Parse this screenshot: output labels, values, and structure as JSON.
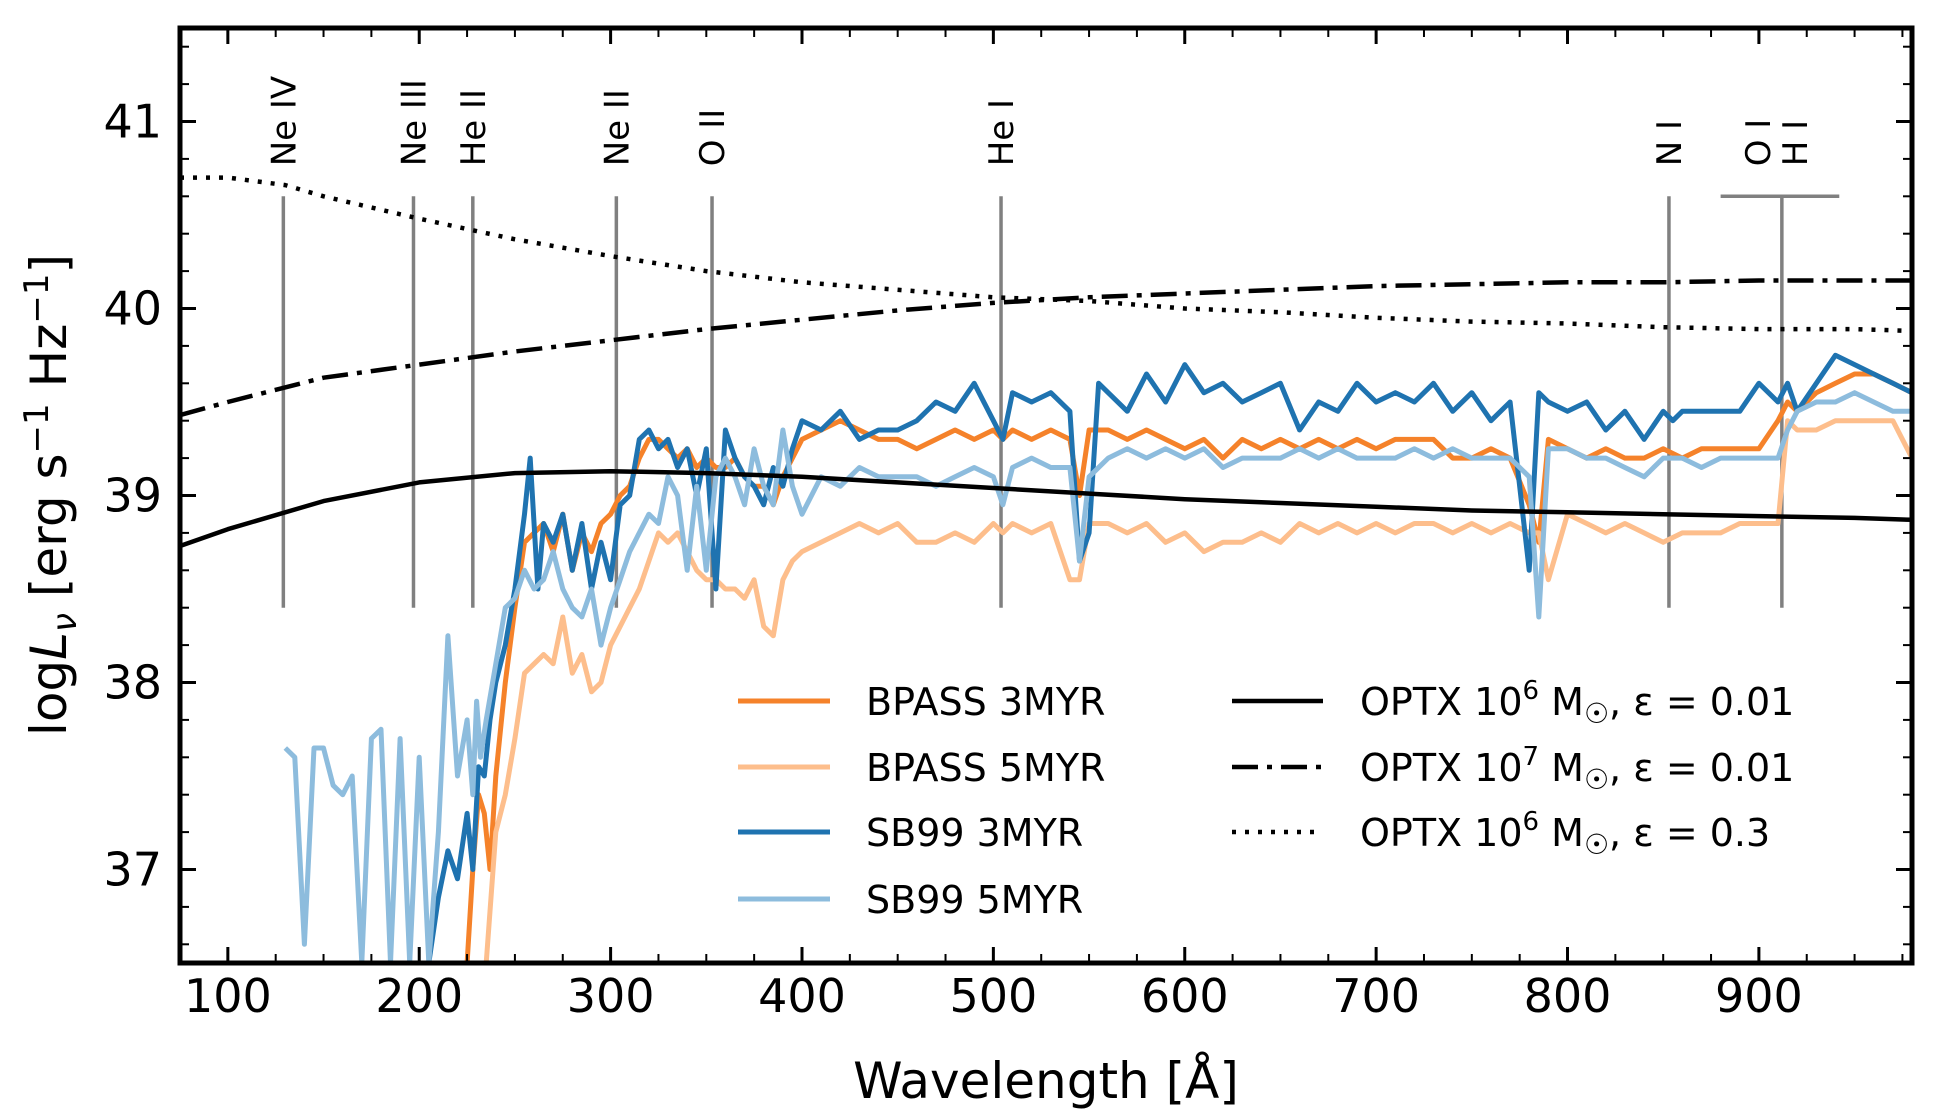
{
  "chart_data": {
    "type": "line",
    "xlabel": "Wavelength [Å]",
    "ylabel_parts": {
      "pre": "log",
      "L": "L",
      "nu": "ν",
      "post": " [erg s",
      "exp1": "−1",
      "mid": " Hz",
      "exp2": "−1",
      "end": "]"
    },
    "xlim": [
      75,
      980
    ],
    "ylim": [
      36.5,
      41.5
    ],
    "xticks": [
      100,
      200,
      300,
      400,
      500,
      600,
      700,
      800,
      900
    ],
    "yticks": [
      37,
      38,
      39,
      40,
      41
    ],
    "grid": false,
    "legend_placement": "lower-right",
    "line_markers": [
      {
        "label": "Ne IV",
        "x": 129
      },
      {
        "label": "Ne III",
        "x": 197
      },
      {
        "label": "He II",
        "x": 228
      },
      {
        "label": "Ne II",
        "x": 303
      },
      {
        "label": "O II",
        "x": 353
      },
      {
        "label": "He I",
        "x": 504
      },
      {
        "label": "N I",
        "x": 853
      },
      {
        "label": "O I",
        "x": 911
      },
      {
        "label": "H I",
        "x": 912
      }
    ],
    "series": [
      {
        "name": "BPASS 3MYR",
        "color": "#f5822a",
        "x": [
          225,
          228,
          231,
          234,
          237,
          240,
          245,
          250,
          255,
          260,
          265,
          270,
          275,
          280,
          285,
          290,
          295,
          300,
          305,
          310,
          315,
          320,
          325,
          330,
          335,
          340,
          345,
          350,
          355,
          360,
          365,
          370,
          375,
          380,
          385,
          390,
          395,
          400,
          410,
          420,
          430,
          440,
          450,
          460,
          470,
          480,
          490,
          500,
          505,
          510,
          520,
          530,
          540,
          545,
          550,
          560,
          570,
          580,
          590,
          600,
          610,
          620,
          630,
          640,
          650,
          660,
          670,
          680,
          690,
          700,
          710,
          720,
          730,
          740,
          750,
          760,
          770,
          780,
          785,
          790,
          800,
          810,
          820,
          830,
          840,
          850,
          860,
          870,
          880,
          890,
          900,
          910,
          915,
          920,
          930,
          940,
          950,
          960,
          970,
          980
        ],
        "y": [
          36.5,
          37.0,
          37.4,
          37.3,
          37.0,
          37.5,
          38.0,
          38.4,
          38.75,
          38.8,
          38.85,
          38.7,
          38.9,
          38.6,
          38.8,
          38.7,
          38.85,
          38.9,
          39.0,
          39.05,
          39.2,
          39.3,
          39.3,
          39.25,
          39.2,
          39.25,
          39.15,
          39.2,
          39.15,
          39.15,
          39.2,
          39.1,
          39.05,
          39.05,
          38.95,
          39.1,
          39.2,
          39.3,
          39.35,
          39.4,
          39.35,
          39.3,
          39.3,
          39.25,
          39.3,
          39.35,
          39.3,
          39.35,
          39.3,
          39.35,
          39.3,
          39.35,
          39.3,
          39.0,
          39.35,
          39.35,
          39.3,
          39.35,
          39.3,
          39.25,
          39.3,
          39.2,
          39.3,
          39.25,
          39.3,
          39.25,
          39.3,
          39.25,
          39.3,
          39.25,
          39.3,
          39.3,
          39.3,
          39.2,
          39.2,
          39.25,
          39.2,
          38.95,
          38.75,
          39.3,
          39.25,
          39.2,
          39.25,
          39.2,
          39.2,
          39.25,
          39.2,
          39.25,
          39.25,
          39.25,
          39.25,
          39.4,
          39.5,
          39.45,
          39.55,
          39.6,
          39.65,
          39.65,
          39.6,
          39.55
        ]
      },
      {
        "name": "BPASS 5MYR",
        "color": "#fdbe8c",
        "x": [
          235,
          240,
          245,
          250,
          255,
          260,
          265,
          270,
          275,
          280,
          285,
          290,
          295,
          300,
          305,
          310,
          315,
          320,
          325,
          330,
          335,
          340,
          345,
          350,
          355,
          360,
          365,
          370,
          375,
          380,
          385,
          390,
          395,
          400,
          410,
          420,
          430,
          440,
          450,
          460,
          470,
          480,
          490,
          500,
          505,
          510,
          520,
          530,
          540,
          545,
          550,
          560,
          570,
          580,
          590,
          600,
          610,
          620,
          630,
          640,
          650,
          660,
          670,
          680,
          690,
          700,
          710,
          720,
          730,
          740,
          750,
          760,
          770,
          780,
          785,
          790,
          800,
          810,
          820,
          830,
          840,
          850,
          860,
          870,
          880,
          890,
          900,
          910,
          915,
          920,
          930,
          940,
          950,
          960,
          970,
          980
        ],
        "y": [
          36.5,
          37.2,
          37.4,
          37.7,
          38.05,
          38.1,
          38.15,
          38.1,
          38.35,
          38.05,
          38.15,
          37.95,
          38.0,
          38.2,
          38.3,
          38.4,
          38.5,
          38.65,
          38.8,
          38.75,
          38.8,
          38.7,
          38.6,
          38.55,
          38.55,
          38.5,
          38.5,
          38.45,
          38.55,
          38.3,
          38.25,
          38.55,
          38.65,
          38.7,
          38.75,
          38.8,
          38.85,
          38.8,
          38.85,
          38.75,
          38.75,
          38.8,
          38.75,
          38.85,
          38.8,
          38.85,
          38.8,
          38.85,
          38.55,
          38.55,
          38.85,
          38.85,
          38.8,
          38.85,
          38.75,
          38.8,
          38.7,
          38.75,
          38.75,
          38.8,
          38.75,
          38.85,
          38.8,
          38.85,
          38.8,
          38.85,
          38.8,
          38.85,
          38.85,
          38.8,
          38.85,
          38.8,
          38.85,
          38.8,
          38.8,
          38.55,
          38.9,
          38.85,
          38.8,
          38.85,
          38.8,
          38.75,
          38.8,
          38.8,
          38.8,
          38.85,
          38.85,
          38.85,
          39.4,
          39.35,
          39.35,
          39.4,
          39.4,
          39.4,
          39.4,
          39.2
        ]
      },
      {
        "name": "SB99 3MYR",
        "color": "#1f73b0",
        "x": [
          205,
          210,
          215,
          220,
          225,
          228,
          231,
          234,
          237,
          240,
          245,
          250,
          255,
          258,
          262,
          265,
          270,
          275,
          280,
          285,
          290,
          295,
          300,
          305,
          310,
          315,
          320,
          325,
          330,
          335,
          340,
          345,
          350,
          355,
          360,
          365,
          370,
          375,
          380,
          385,
          390,
          395,
          400,
          410,
          420,
          430,
          440,
          450,
          460,
          470,
          480,
          490,
          500,
          505,
          510,
          520,
          530,
          540,
          545,
          550,
          555,
          560,
          570,
          580,
          590,
          600,
          610,
          620,
          630,
          640,
          650,
          660,
          670,
          680,
          690,
          700,
          710,
          720,
          730,
          740,
          750,
          760,
          770,
          780,
          785,
          790,
          800,
          810,
          820,
          830,
          840,
          850,
          855,
          860,
          870,
          880,
          890,
          900,
          910,
          915,
          920,
          930,
          940,
          950,
          960,
          970,
          980
        ],
        "y": [
          36.5,
          36.85,
          37.1,
          36.95,
          37.3,
          37.0,
          37.55,
          37.5,
          37.8,
          38.0,
          38.2,
          38.5,
          38.9,
          39.2,
          38.5,
          38.85,
          38.75,
          38.9,
          38.6,
          38.85,
          38.5,
          38.75,
          38.55,
          38.95,
          39.0,
          39.3,
          39.35,
          39.25,
          39.3,
          39.15,
          39.25,
          39.0,
          39.25,
          38.5,
          39.35,
          39.2,
          39.1,
          39.05,
          38.95,
          39.15,
          39.05,
          39.25,
          39.4,
          39.35,
          39.45,
          39.3,
          39.35,
          39.35,
          39.4,
          39.5,
          39.45,
          39.6,
          39.4,
          39.3,
          39.55,
          39.5,
          39.55,
          39.45,
          38.65,
          38.8,
          39.6,
          39.55,
          39.45,
          39.65,
          39.5,
          39.7,
          39.55,
          39.6,
          39.5,
          39.55,
          39.6,
          39.35,
          39.5,
          39.45,
          39.6,
          39.5,
          39.55,
          39.5,
          39.6,
          39.45,
          39.55,
          39.4,
          39.5,
          38.6,
          39.55,
          39.5,
          39.45,
          39.5,
          39.35,
          39.45,
          39.3,
          39.45,
          39.4,
          39.45,
          39.45,
          39.45,
          39.45,
          39.6,
          39.5,
          39.6,
          39.45,
          39.6,
          39.75,
          39.7,
          39.65,
          39.6,
          39.55
        ]
      },
      {
        "name": "SB99 5MYR",
        "color": "#8dbcdd",
        "x": [
          130,
          135,
          140,
          145,
          150,
          155,
          160,
          165,
          170,
          175,
          180,
          185,
          190,
          195,
          200,
          205,
          210,
          215,
          220,
          225,
          228,
          230,
          232,
          235,
          240,
          245,
          250,
          255,
          260,
          265,
          270,
          275,
          280,
          285,
          290,
          295,
          300,
          305,
          310,
          315,
          320,
          325,
          330,
          335,
          340,
          345,
          350,
          355,
          360,
          365,
          370,
          375,
          380,
          385,
          390,
          395,
          400,
          410,
          420,
          430,
          440,
          450,
          460,
          470,
          480,
          490,
          500,
          505,
          510,
          520,
          530,
          540,
          545,
          550,
          560,
          570,
          580,
          590,
          600,
          610,
          620,
          630,
          640,
          650,
          660,
          670,
          680,
          690,
          700,
          710,
          720,
          730,
          740,
          750,
          760,
          770,
          780,
          785,
          790,
          800,
          810,
          820,
          830,
          840,
          850,
          860,
          870,
          880,
          890,
          900,
          910,
          915,
          920,
          930,
          940,
          950,
          960,
          970,
          980
        ],
        "y": [
          37.65,
          37.6,
          36.6,
          37.65,
          37.65,
          37.45,
          37.4,
          37.5,
          36.5,
          37.7,
          37.75,
          36.5,
          37.7,
          36.5,
          37.6,
          36.5,
          37.2,
          38.25,
          37.5,
          37.8,
          37.4,
          37.9,
          37.6,
          37.8,
          38.1,
          38.4,
          38.45,
          38.6,
          38.5,
          38.55,
          38.7,
          38.5,
          38.4,
          38.35,
          38.5,
          38.2,
          38.4,
          38.55,
          38.7,
          38.8,
          38.9,
          38.85,
          39.1,
          39.0,
          38.6,
          39.05,
          38.6,
          39.1,
          39.2,
          39.1,
          38.95,
          39.25,
          39.05,
          38.95,
          39.35,
          39.05,
          38.9,
          39.1,
          39.05,
          39.15,
          39.1,
          39.1,
          39.1,
          39.05,
          39.1,
          39.15,
          39.1,
          38.95,
          39.15,
          39.2,
          39.15,
          39.15,
          38.65,
          39.1,
          39.2,
          39.25,
          39.2,
          39.25,
          39.2,
          39.25,
          39.15,
          39.2,
          39.2,
          39.2,
          39.25,
          39.2,
          39.25,
          39.2,
          39.2,
          39.2,
          39.25,
          39.2,
          39.25,
          39.2,
          39.2,
          39.2,
          39.1,
          38.35,
          39.25,
          39.25,
          39.2,
          39.2,
          39.15,
          39.1,
          39.2,
          39.2,
          39.15,
          39.2,
          39.2,
          39.2,
          39.2,
          39.35,
          39.45,
          39.5,
          39.5,
          39.55,
          39.5,
          39.45,
          39.45
        ]
      },
      {
        "name": "OPTX 10⁶ M☉, ε = 0.01",
        "color": "#000000",
        "style": "solid",
        "x": [
          75,
          100,
          150,
          200,
          250,
          300,
          350,
          400,
          450,
          500,
          550,
          600,
          650,
          700,
          750,
          800,
          850,
          900,
          950,
          980
        ],
        "y": [
          38.73,
          38.82,
          38.97,
          39.07,
          39.12,
          39.13,
          39.12,
          39.1,
          39.07,
          39.04,
          39.01,
          38.98,
          38.96,
          38.94,
          38.92,
          38.91,
          38.9,
          38.89,
          38.88,
          38.87
        ]
      },
      {
        "name": "OPTX 10⁷ M☉, ε = 0.01",
        "color": "#000000",
        "style": "dashdot",
        "x": [
          75,
          100,
          150,
          200,
          250,
          300,
          350,
          400,
          450,
          500,
          550,
          600,
          650,
          700,
          750,
          800,
          850,
          900,
          950,
          980
        ],
        "y": [
          39.43,
          39.5,
          39.63,
          39.7,
          39.77,
          39.83,
          39.89,
          39.94,
          39.99,
          40.03,
          40.06,
          40.08,
          40.1,
          40.12,
          40.13,
          40.14,
          40.14,
          40.15,
          40.15,
          40.15
        ]
      },
      {
        "name": "OPTX 10⁶ M☉, ε = 0.3",
        "color": "#000000",
        "style": "dotted",
        "x": [
          75,
          100,
          130,
          150,
          200,
          250,
          300,
          350,
          400,
          450,
          500,
          550,
          600,
          650,
          700,
          750,
          800,
          850,
          900,
          950,
          980
        ],
        "y": [
          40.7,
          40.7,
          40.66,
          40.6,
          40.48,
          40.37,
          40.28,
          40.2,
          40.14,
          40.1,
          40.06,
          40.04,
          40.0,
          39.98,
          39.95,
          39.93,
          39.92,
          39.9,
          39.89,
          39.89,
          39.88
        ]
      }
    ],
    "legend_left": [
      {
        "label": "BPASS 3MYR",
        "color": "#f5822a"
      },
      {
        "label": "BPASS 5MYR",
        "color": "#fdbe8c"
      },
      {
        "label": "SB99 3MYR",
        "color": "#1f73b0"
      },
      {
        "label": "SB99 5MYR",
        "color": "#8dbcdd"
      }
    ],
    "legend_right": [
      {
        "pre": "OPTX 10",
        "exp": "6",
        "post": " M",
        "sun": "☉",
        "tail": ", ε = 0.01",
        "style": "solid"
      },
      {
        "pre": "OPTX 10",
        "exp": "7",
        "post": " M",
        "sun": "☉",
        "tail": ", ε = 0.01",
        "style": "dashdot"
      },
      {
        "pre": "OPTX 10",
        "exp": "6",
        "post": " M",
        "sun": "☉",
        "tail": ", ε = 0.3",
        "style": "dotted"
      }
    ]
  }
}
